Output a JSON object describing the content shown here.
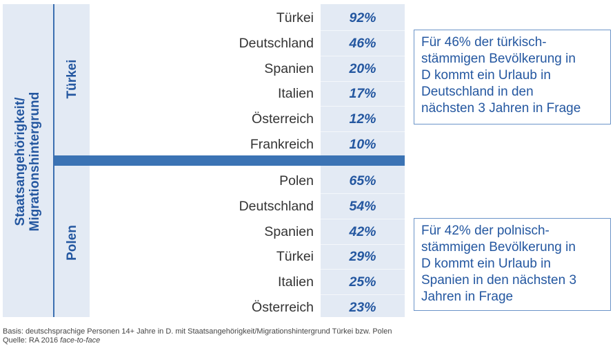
{
  "outer_label": "Staatsangehörigkeit/ Migrationshintergrund",
  "outer_label_lines": [
    "Staatsangehörigkeit/",
    "Migrationshintergrund"
  ],
  "groups": [
    {
      "label": "Türkei",
      "rows": [
        {
          "country": "Türkei",
          "value": "92%"
        },
        {
          "country": "Deutschland",
          "value": "46%"
        },
        {
          "country": "Spanien",
          "value": "20%"
        },
        {
          "country": "Italien",
          "value": "17%"
        },
        {
          "country": "Österreich",
          "value": "12%"
        },
        {
          "country": "Frankreich",
          "value": "10%"
        }
      ],
      "note": "Für 46% der türkisch-stämmigen Bevölkerung in D kommt ein Urlaub in Deutschland in den nächsten 3 Jahren in Frage",
      "note_lines": [
        "Für 46% der türkisch-",
        "stämmigen Bevölkerung in",
        "D kommt ein Urlaub in",
        "Deutschland in den",
        "nächsten 3 Jahren in Frage"
      ]
    },
    {
      "label": "Polen",
      "rows": [
        {
          "country": "Polen",
          "value": "65%"
        },
        {
          "country": "Deutschland",
          "value": "54%"
        },
        {
          "country": "Spanien",
          "value": "42%"
        },
        {
          "country": "Türkei",
          "value": "29%"
        },
        {
          "country": "Italien",
          "value": "25%"
        },
        {
          "country": "Österreich",
          "value": "23%"
        }
      ],
      "note": "Für 42% der polnisch-stämmigen Bevölkerung in D kommt ein Urlaub in Spanien in den nächsten 3 Jahren in Frage",
      "note_lines": [
        "Für 42% der polnisch-",
        "stämmigen Bevölkerung in",
        "D kommt ein Urlaub in",
        "Spanien in den nächsten 3",
        "Jahren in Frage"
      ]
    }
  ],
  "footer": {
    "basis": "Basis: deutschsprachige Personen 14+ Jahre in D. mit Staatsangehörigkeit/Migrationshintergrund Türkei bzw. Polen",
    "source_prefix": "Quelle: RA 2016 ",
    "source_italic": "face-to-face"
  },
  "colors": {
    "accent": "#3b73b4",
    "text_blue": "#2457a0",
    "panel": "#e3eaf4"
  },
  "chart_data": {
    "type": "table",
    "title": "",
    "row_group_label": "Staatsangehörigkeit/Migrationshintergrund",
    "series": [
      {
        "name": "Türkei",
        "categories": [
          "Türkei",
          "Deutschland",
          "Spanien",
          "Italien",
          "Österreich",
          "Frankreich"
        ],
        "values": [
          92,
          46,
          20,
          17,
          12,
          10
        ]
      },
      {
        "name": "Polen",
        "categories": [
          "Polen",
          "Deutschland",
          "Spanien",
          "Türkei",
          "Italien",
          "Österreich"
        ],
        "values": [
          65,
          54,
          42,
          29,
          25,
          23
        ]
      }
    ],
    "unit": "%"
  }
}
